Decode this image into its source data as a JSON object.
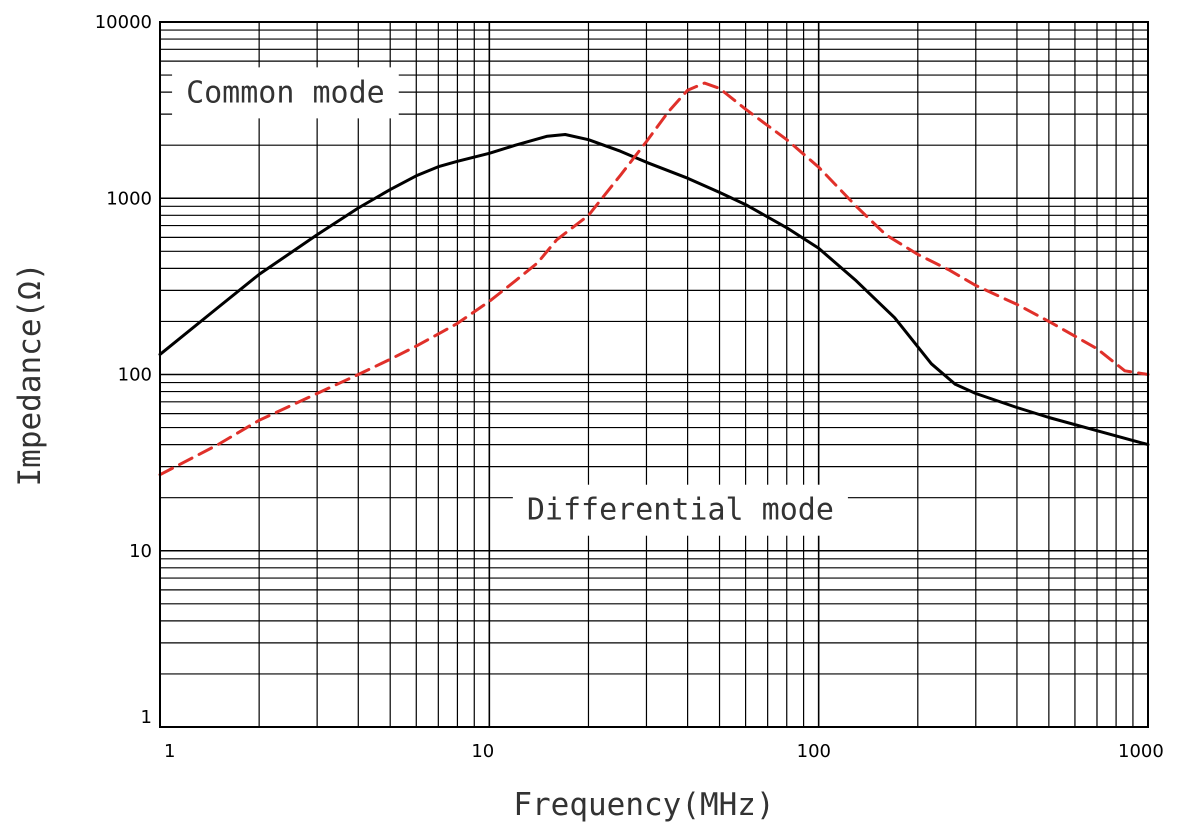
{
  "chart_data": {
    "type": "line",
    "xlabel": "Frequency(MHz)",
    "ylabel": "Impedance(Ω)",
    "x_scale": "log",
    "y_scale": "log",
    "xlim": [
      1,
      1000
    ],
    "ylim": [
      1,
      10000
    ],
    "grid": true,
    "x_ticks": [
      "1",
      "10",
      "100",
      "1000"
    ],
    "y_ticks": [
      "1",
      "10",
      "100",
      "1000",
      "10000"
    ],
    "annotations": [
      {
        "text": "Common mode",
        "x": 1.2,
        "y": 3500
      },
      {
        "text": "Differential mode",
        "x": 13,
        "y": 15
      }
    ],
    "series": [
      {
        "color": "#000000",
        "dash": "solid",
        "points": [
          [
            1,
            130
          ],
          [
            1.5,
            240
          ],
          [
            2,
            370
          ],
          [
            3,
            620
          ],
          [
            4,
            880
          ],
          [
            5,
            1120
          ],
          [
            6,
            1340
          ],
          [
            7,
            1510
          ],
          [
            8,
            1620
          ],
          [
            10,
            1800
          ],
          [
            12,
            2000
          ],
          [
            15,
            2250
          ],
          [
            17,
            2300
          ],
          [
            20,
            2150
          ],
          [
            25,
            1850
          ],
          [
            30,
            1600
          ],
          [
            40,
            1300
          ],
          [
            50,
            1080
          ],
          [
            60,
            920
          ],
          [
            80,
            680
          ],
          [
            100,
            520
          ],
          [
            130,
            340
          ],
          [
            170,
            210
          ],
          [
            220,
            115
          ],
          [
            260,
            88
          ],
          [
            300,
            78
          ],
          [
            400,
            65
          ],
          [
            500,
            57
          ],
          [
            700,
            48
          ],
          [
            1000,
            40
          ]
        ]
      },
      {
        "color": "#e0302a",
        "dash": "dashed",
        "points": [
          [
            1,
            27
          ],
          [
            1.5,
            40
          ],
          [
            2,
            55
          ],
          [
            3,
            78
          ],
          [
            4,
            100
          ],
          [
            5,
            122
          ],
          [
            6,
            145
          ],
          [
            8,
            195
          ],
          [
            10,
            260
          ],
          [
            12,
            340
          ],
          [
            14,
            430
          ],
          [
            16,
            580
          ],
          [
            20,
            800
          ],
          [
            25,
            1350
          ],
          [
            30,
            2100
          ],
          [
            35,
            3100
          ],
          [
            40,
            4100
          ],
          [
            45,
            4500
          ],
          [
            50,
            4200
          ],
          [
            60,
            3200
          ],
          [
            80,
            2150
          ],
          [
            100,
            1500
          ],
          [
            130,
            900
          ],
          [
            160,
            620
          ],
          [
            200,
            480
          ],
          [
            250,
            390
          ],
          [
            300,
            320
          ],
          [
            400,
            250
          ],
          [
            500,
            200
          ],
          [
            700,
            140
          ],
          [
            850,
            105
          ],
          [
            1000,
            100
          ]
        ]
      }
    ]
  }
}
